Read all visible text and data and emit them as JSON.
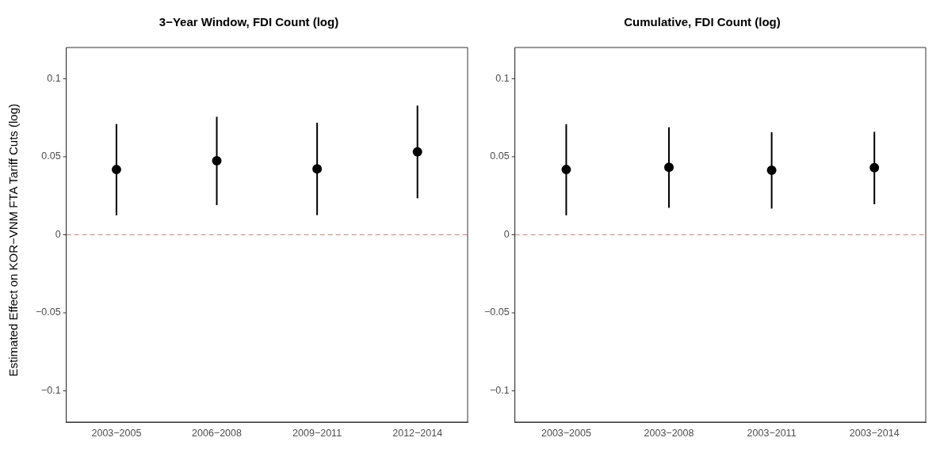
{
  "chart_data": [
    {
      "type": "scatter",
      "title": "3−Year Window, FDI Count (log)",
      "ylabel": "Estimated Effect on KOR−VNM FTA Tariff Cuts (log)",
      "categories": [
        "2003−2005",
        "2006−2008",
        "2009−2011",
        "2012−2014"
      ],
      "values": [
        0.0418,
        0.0474,
        0.0423,
        0.0531
      ],
      "errors": [
        [
          0.0125,
          0.071
        ],
        [
          0.019,
          0.0756
        ],
        [
          0.0126,
          0.0718
        ],
        [
          0.0234,
          0.0828
        ]
      ],
      "color": "#000000",
      "marker": "circle",
      "ylim": [
        -0.12,
        0.12
      ],
      "yticks": [
        -0.1,
        -0.05,
        0,
        0.05,
        0.1
      ],
      "ref_lines": [
        {
          "axis": "y",
          "value": 0,
          "color": "#c08a86",
          "line_style": "dashed"
        }
      ]
    },
    {
      "type": "scatter",
      "title": "Cumulative, FDI Count (log)",
      "categories": [
        "2003−2005",
        "2003−2008",
        "2003−2011",
        "2003−2014"
      ],
      "values": [
        0.0418,
        0.0433,
        0.0413,
        0.043
      ],
      "errors": [
        [
          0.0125,
          0.0709
        ],
        [
          0.0173,
          0.0689
        ],
        [
          0.0168,
          0.0657
        ],
        [
          0.0196,
          0.066
        ]
      ],
      "color": "#000000",
      "marker": "circle",
      "ylim": [
        -0.12,
        0.12
      ],
      "yticks": [
        -0.1,
        -0.05,
        0,
        0.05,
        0.1
      ],
      "ref_lines": [
        {
          "axis": "y",
          "value": 0,
          "color": "#c08a86",
          "line_style": "dashed"
        }
      ]
    }
  ]
}
